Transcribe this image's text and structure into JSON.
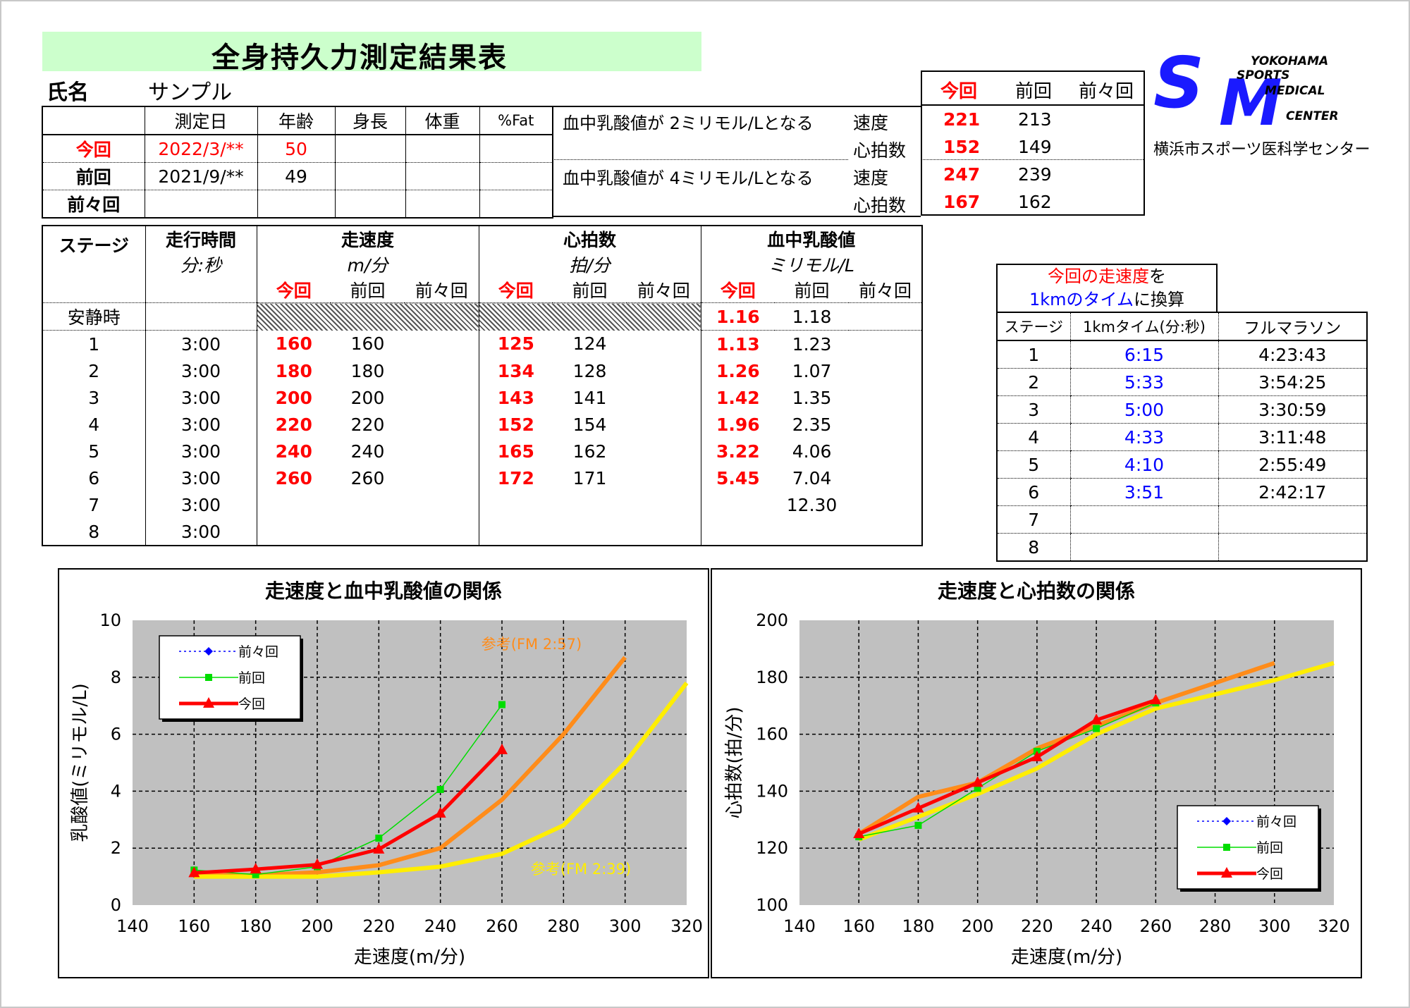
{
  "title": "全身持久力測定結果表",
  "name_label": "氏名",
  "name_value": "サンプル",
  "logo": {
    "caption": "横浜市スポーツ医科学センター",
    "letters": [
      "S",
      "M"
    ],
    "words": [
      "YOKOHAMA",
      "SPORTS",
      "MEDICAL",
      "CENTER"
    ]
  },
  "info": {
    "headers": [
      "",
      "測定日",
      "年齢",
      "身長",
      "体重",
      "%Fat"
    ],
    "rows": [
      {
        "label": "今回",
        "date": "2022/3/**",
        "age": "50",
        "height": "",
        "weight": "",
        "fat": ""
      },
      {
        "label": "前回",
        "date": "2021/9/**",
        "age": "49",
        "height": "",
        "weight": "",
        "fat": ""
      },
      {
        "label": "前々回",
        "date": "",
        "age": "",
        "height": "",
        "weight": "",
        "fat": ""
      }
    ]
  },
  "threshold": {
    "col_headers": [
      "今回",
      "前回",
      "前々回"
    ],
    "row1_desc": "血中乳酸値が 2ミリモル/Lとなる",
    "row2_desc": "血中乳酸値が 4ミリモル/Lとなる",
    "speed_label": "速度",
    "hr_label": "心拍数",
    "lt2_speed": [
      "221",
      "213",
      ""
    ],
    "lt2_hr": [
      "152",
      "149",
      ""
    ],
    "lt4_speed": [
      "247",
      "239",
      ""
    ],
    "lt4_hr": [
      "167",
      "162",
      ""
    ]
  },
  "stage_table": {
    "h_stage": "ステージ",
    "h_time": "走行時間",
    "h_time_unit": "分:秒",
    "h_speed": "走速度",
    "h_speed_unit": "m/分",
    "h_hr": "心拍数",
    "h_hr_unit": "拍/分",
    "h_lac": "血中乳酸値",
    "h_lac_unit": "ミリモル/L",
    "sub": [
      "今回",
      "前回",
      "前々回"
    ],
    "rest_label": "安静時",
    "rest_lac": [
      "1.16",
      "1.18",
      ""
    ],
    "rows": [
      {
        "stage": "1",
        "time": "3:00",
        "speed": [
          "160",
          "160",
          ""
        ],
        "hr": [
          "125",
          "124",
          ""
        ],
        "lac": [
          "1.13",
          "1.23",
          ""
        ]
      },
      {
        "stage": "2",
        "time": "3:00",
        "speed": [
          "180",
          "180",
          ""
        ],
        "hr": [
          "134",
          "128",
          ""
        ],
        "lac": [
          "1.26",
          "1.07",
          ""
        ]
      },
      {
        "stage": "3",
        "time": "3:00",
        "speed": [
          "200",
          "200",
          ""
        ],
        "hr": [
          "143",
          "141",
          ""
        ],
        "lac": [
          "1.42",
          "1.35",
          ""
        ]
      },
      {
        "stage": "4",
        "time": "3:00",
        "speed": [
          "220",
          "220",
          ""
        ],
        "hr": [
          "152",
          "154",
          ""
        ],
        "lac": [
          "1.96",
          "2.35",
          ""
        ]
      },
      {
        "stage": "5",
        "time": "3:00",
        "speed": [
          "240",
          "240",
          ""
        ],
        "hr": [
          "165",
          "162",
          ""
        ],
        "lac": [
          "3.22",
          "4.06",
          ""
        ]
      },
      {
        "stage": "6",
        "time": "3:00",
        "speed": [
          "260",
          "260",
          ""
        ],
        "hr": [
          "172",
          "171",
          ""
        ],
        "lac": [
          "5.45",
          "7.04",
          ""
        ]
      },
      {
        "stage": "7",
        "time": "3:00",
        "speed": [
          "",
          "",
          ""
        ],
        "hr": [
          "",
          "",
          ""
        ],
        "lac": [
          "",
          "12.30",
          ""
        ]
      },
      {
        "stage": "8",
        "time": "3:00",
        "speed": [
          "",
          "",
          ""
        ],
        "hr": [
          "",
          "",
          ""
        ],
        "lac": [
          "",
          "",
          ""
        ]
      }
    ]
  },
  "km_table": {
    "title_a1": "今回の",
    "title_a2": "走速度",
    "title_a3": "を",
    "title_b1": "1kmのタイム",
    "title_b2": "に換算",
    "headers": [
      "ステージ",
      "1kmタイム(分:秒)",
      "フルマラソン"
    ],
    "rows": [
      {
        "stage": "1",
        "km": "6:15",
        "full": "4:23:43"
      },
      {
        "stage": "2",
        "km": "5:33",
        "full": "3:54:25"
      },
      {
        "stage": "3",
        "km": "5:00",
        "full": "3:30:59"
      },
      {
        "stage": "4",
        "km": "4:33",
        "full": "3:11:48"
      },
      {
        "stage": "5",
        "km": "4:10",
        "full": "2:55:49"
      },
      {
        "stage": "6",
        "km": "3:51",
        "full": "2:42:17"
      },
      {
        "stage": "7",
        "km": "",
        "full": ""
      },
      {
        "stage": "8",
        "km": "",
        "full": ""
      }
    ]
  },
  "chart_data": [
    {
      "type": "line",
      "title": "走速度と血中乳酸値の関係",
      "xlabel": "走速度(m/分)",
      "ylabel": "乳酸値(ミリモル/L)",
      "xlim": [
        140,
        320
      ],
      "ylim": [
        0,
        10
      ],
      "xticks": [
        140,
        160,
        180,
        200,
        220,
        240,
        260,
        280,
        300,
        320
      ],
      "yticks": [
        0,
        2,
        4,
        6,
        8,
        10
      ],
      "grid": true,
      "legend_position": "top-left",
      "series": [
        {
          "name": "前々回",
          "color": "#0000ff",
          "dash": true,
          "marker": "diamond",
          "x": [],
          "y": []
        },
        {
          "name": "前回",
          "color": "#00dd00",
          "marker": "square",
          "x": [
            160,
            180,
            200,
            220,
            240,
            260
          ],
          "y": [
            1.23,
            1.07,
            1.35,
            2.35,
            4.06,
            7.04
          ]
        },
        {
          "name": "今回",
          "color": "#ff0000",
          "marker": "triangle",
          "x": [
            160,
            180,
            200,
            220,
            240,
            260
          ],
          "y": [
            1.13,
            1.26,
            1.42,
            1.96,
            3.22,
            5.45
          ]
        }
      ],
      "reference": [
        {
          "label": "参考(FM 2:57)",
          "color": "#ff8c1a",
          "x": [
            160,
            180,
            200,
            220,
            240,
            260,
            280,
            300
          ],
          "y": [
            1.05,
            1.05,
            1.15,
            1.4,
            2.0,
            3.7,
            6.0,
            8.7
          ]
        },
        {
          "label": "参考(FM 2:39)",
          "color": "#ffee00",
          "x": [
            160,
            180,
            200,
            220,
            240,
            260,
            280,
            300,
            320
          ],
          "y": [
            1.0,
            1.0,
            1.0,
            1.15,
            1.35,
            1.8,
            2.8,
            5.0,
            7.8
          ]
        }
      ]
    },
    {
      "type": "line",
      "title": "走速度と心拍数の関係",
      "xlabel": "走速度(m/分)",
      "ylabel": "心拍数(拍/分)",
      "xlim": [
        140,
        320
      ],
      "ylim": [
        100,
        200
      ],
      "xticks": [
        140,
        160,
        180,
        200,
        220,
        240,
        260,
        280,
        300,
        320
      ],
      "yticks": [
        100,
        120,
        140,
        160,
        180,
        200
      ],
      "grid": true,
      "legend_position": "bottom-right",
      "series": [
        {
          "name": "前々回",
          "color": "#0000ff",
          "dash": true,
          "marker": "diamond",
          "x": [],
          "y": []
        },
        {
          "name": "前回",
          "color": "#00dd00",
          "marker": "square",
          "x": [
            160,
            180,
            200,
            220,
            240,
            260
          ],
          "y": [
            124,
            128,
            141,
            154,
            162,
            171
          ]
        },
        {
          "name": "今回",
          "color": "#ff0000",
          "marker": "triangle",
          "x": [
            160,
            180,
            200,
            220,
            240,
            260
          ],
          "y": [
            125,
            134,
            143,
            152,
            165,
            172
          ]
        }
      ],
      "reference": [
        {
          "label": "",
          "color": "#ff8c1a",
          "x": [
            160,
            180,
            200,
            220,
            240,
            260,
            280,
            300
          ],
          "y": [
            125,
            138,
            143,
            155,
            163,
            171,
            178,
            185
          ]
        },
        {
          "label": "",
          "color": "#ffee00",
          "x": [
            160,
            180,
            200,
            220,
            240,
            260,
            280,
            300,
            320
          ],
          "y": [
            123,
            131,
            139,
            148,
            160,
            169,
            174,
            179,
            185
          ]
        }
      ]
    }
  ]
}
